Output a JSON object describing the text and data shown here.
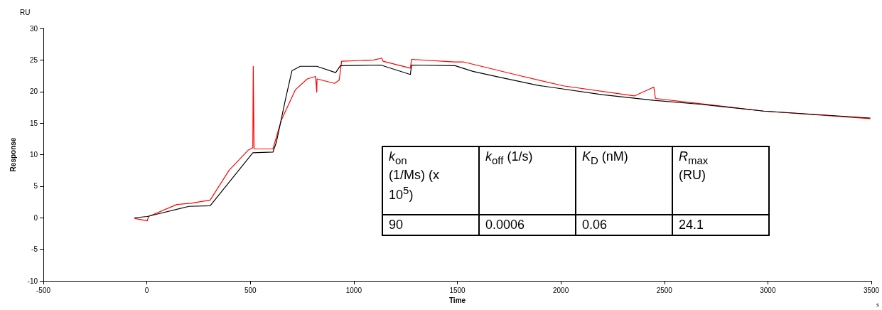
{
  "chart_data": {
    "type": "line",
    "xlabel": "Time",
    "ylabel": "Response",
    "annotations": [
      "RU",
      "s",
      "k$_{on}$ (1/Ms) (x 10$^{5}$)",
      "k$_{off}$ (1/s)",
      "K$_{D}$ (nM)",
      "R$_{max}$ (RU)",
      "90",
      "0.0006",
      "0.06",
      "24.1"
    ],
    "xlim": [
      -500,
      3500
    ],
    "xticks": [
      -500,
      0,
      500,
      1000,
      1500,
      2000,
      2500,
      3000,
      3500
    ],
    "ylim": [
      -10,
      30
    ],
    "yticks": [
      -10,
      -5,
      0,
      5,
      10,
      15,
      20,
      25,
      30
    ],
    "grid": false,
    "marker": "none",
    "line_style": "solid",
    "series": [
      {
        "color": "#ff0000",
        "x": [
          -60,
          2,
          8,
          145,
          214,
          306,
          397,
          489,
          512,
          514,
          518,
          609,
          649,
          718,
          775,
          815,
          821,
          822,
          907,
          929,
          941,
          1096,
          1135,
          1141,
          1273,
          1279,
          1485,
          1528,
          1778,
          2012,
          2355,
          2449,
          2457,
          2668,
          2980,
          3495
        ],
        "values": [
          -0.1,
          -0.5,
          0.2,
          2.1,
          2.3,
          2.8,
          7.5,
          10.7,
          11.1,
          24.0,
          10.9,
          10.9,
          15.4,
          20.3,
          22.0,
          22.4,
          19.9,
          22.0,
          21.3,
          21.8,
          24.8,
          25.0,
          25.3,
          24.8,
          23.7,
          25.1,
          24.7,
          24.7,
          22.7,
          20.9,
          19.3,
          20.7,
          18.9,
          18.1,
          16.9,
          15.7
        ]
      },
      {
        "color": "#000000",
        "x": [
          -60,
          2,
          203,
          306,
          512,
          609,
          626,
          672,
          701,
          741,
          821,
          912,
          935,
          1130,
          1273,
          1279,
          1489,
          1575,
          1700,
          1886,
          2199,
          2449,
          2668,
          2980,
          3495
        ],
        "values": [
          0,
          0.2,
          1.8,
          1.9,
          10.3,
          10.4,
          12,
          19.1,
          23.3,
          24.0,
          24.0,
          23.0,
          24.1,
          24.2,
          22.7,
          24.2,
          24.1,
          23.2,
          22.3,
          21.0,
          19.5,
          18.6,
          18.0,
          16.9,
          15.8
        ]
      }
    ]
  }
}
